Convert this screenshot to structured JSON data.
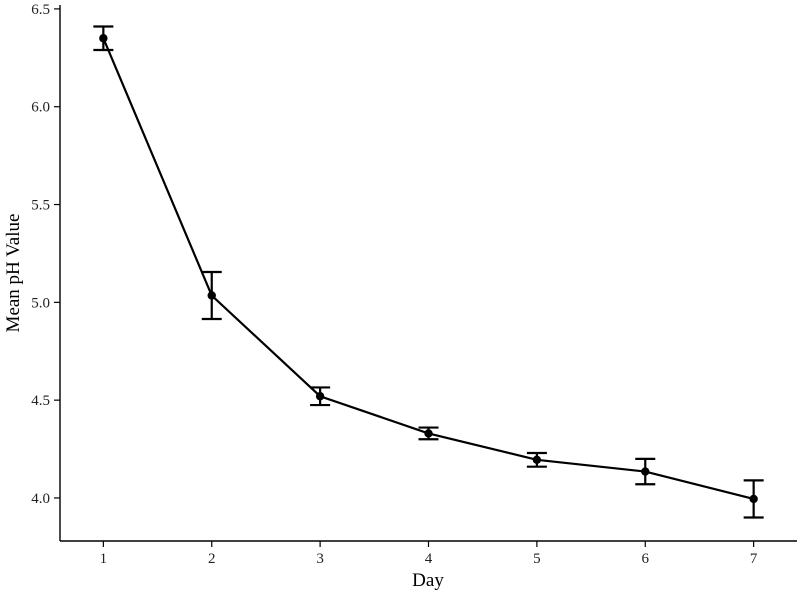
{
  "chart_data": {
    "type": "line",
    "title": "",
    "xlabel": "Day",
    "ylabel": "Mean pH Value",
    "x": [
      1,
      2,
      3,
      4,
      5,
      6,
      7
    ],
    "series": [
      {
        "values": [
          6.35,
          5.035,
          4.52,
          4.33,
          4.195,
          4.135,
          3.995
        ],
        "error_low": [
          6.29,
          4.915,
          4.475,
          4.3,
          4.16,
          4.07,
          3.9
        ],
        "error_high": [
          6.41,
          5.155,
          4.565,
          4.36,
          4.23,
          4.2,
          4.09
        ]
      }
    ],
    "xticks": [
      "1",
      "2",
      "3",
      "4",
      "5",
      "6",
      "7"
    ],
    "yticks": [
      "4.0",
      "4.5",
      "5.0",
      "5.5",
      "6.0",
      "6.5"
    ],
    "xlim": [
      0.6,
      7.4
    ],
    "ylim": [
      3.78,
      6.52
    ],
    "grid": false,
    "legend": "none",
    "colors": {
      "line": "#000000",
      "axis": "#000000"
    }
  }
}
